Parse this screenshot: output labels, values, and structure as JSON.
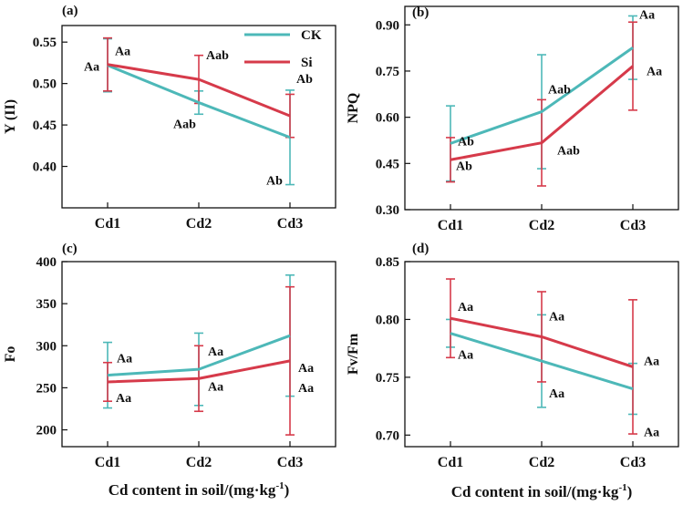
{
  "colors": {
    "CK": "#4db8b8",
    "Si": "#d63a4a",
    "axis": "#111111"
  },
  "legend": [
    {
      "name": "CK",
      "color": "#4db8b8"
    },
    {
      "name": "Si",
      "color": "#d63a4a"
    }
  ],
  "x_title": {
    "main": "Cd content in soil/(mg·kg",
    "sup": "-1",
    "close": ")"
  },
  "chart_data": [
    {
      "panel": "(a)",
      "type": "line",
      "ylabel": "Y (II)",
      "categories": [
        "Cd1",
        "Cd2",
        "Cd3"
      ],
      "ylim": [
        0.35,
        0.57
      ],
      "yticks": [
        0.4,
        0.45,
        0.5,
        0.55
      ],
      "ytick_labels": [
        "0.40",
        "0.45",
        "0.50",
        "0.55"
      ],
      "series": [
        {
          "name": "CK",
          "values": [
            0.522,
            0.477,
            0.435
          ],
          "errors": [
            0.032,
            0.014,
            0.057
          ],
          "annotations": [
            "Aa",
            "Aab",
            "Ab"
          ]
        },
        {
          "name": "Si",
          "values": [
            0.523,
            0.505,
            0.461
          ],
          "errors": [
            0.032,
            0.029,
            0.026
          ],
          "annotations": [
            "Aa",
            "Aab",
            "Ab"
          ]
        }
      ]
    },
    {
      "panel": "(b)",
      "type": "line",
      "ylabel": "NPQ",
      "categories": [
        "Cd1",
        "Cd2",
        "Cd3"
      ],
      "ylim": [
        0.3,
        0.96
      ],
      "yticks": [
        0.3,
        0.45,
        0.6,
        0.75,
        0.9
      ],
      "ytick_labels": [
        "0.30",
        "0.45",
        "0.60",
        "0.75",
        "0.90"
      ],
      "series": [
        {
          "name": "CK",
          "values": [
            0.515,
            0.618,
            0.826
          ],
          "errors": [
            0.122,
            0.185,
            0.103
          ],
          "annotations": [
            "Ab",
            "Aab",
            "Aa"
          ]
        },
        {
          "name": "Si",
          "values": [
            0.462,
            0.517,
            0.766
          ],
          "errors": [
            0.072,
            0.14,
            0.143
          ],
          "annotations": [
            "Ab",
            "Aab",
            "Aa"
          ]
        }
      ]
    },
    {
      "panel": "(c)",
      "type": "line",
      "ylabel": "Fo",
      "categories": [
        "Cd1",
        "Cd2",
        "Cd3"
      ],
      "ylim": [
        180,
        400
      ],
      "yticks": [
        200,
        250,
        300,
        350,
        400
      ],
      "ytick_labels": [
        "200",
        "250",
        "300",
        "350",
        "400"
      ],
      "series": [
        {
          "name": "CK",
          "values": [
            265,
            272,
            312
          ],
          "errors": [
            39,
            43,
            72
          ],
          "annotations": [
            "Aa",
            "Aa",
            "Aa"
          ]
        },
        {
          "name": "Si",
          "values": [
            257,
            261,
            282
          ],
          "errors": [
            23,
            39,
            88
          ],
          "annotations": [
            "Aa",
            "Aa",
            "Aa"
          ]
        }
      ]
    },
    {
      "panel": "(d)",
      "type": "line",
      "ylabel": "Fv/Fm",
      "categories": [
        "Cd1",
        "Cd2",
        "Cd3"
      ],
      "ylim": [
        0.69,
        0.85
      ],
      "yticks": [
        0.7,
        0.75,
        0.8,
        0.85
      ],
      "ytick_labels": [
        "0.70",
        "0.75",
        "0.80",
        "0.85"
      ],
      "series": [
        {
          "name": "CK",
          "values": [
            0.788,
            0.764,
            0.74
          ],
          "errors": [
            0.012,
            0.04,
            0.022
          ],
          "annotations": [
            "Aa",
            "Aa",
            "Aa"
          ]
        },
        {
          "name": "Si",
          "values": [
            0.801,
            0.785,
            0.759
          ],
          "errors": [
            0.034,
            0.039,
            0.058
          ],
          "annotations": [
            "Aa",
            "Aa",
            "Aa"
          ]
        }
      ]
    }
  ]
}
